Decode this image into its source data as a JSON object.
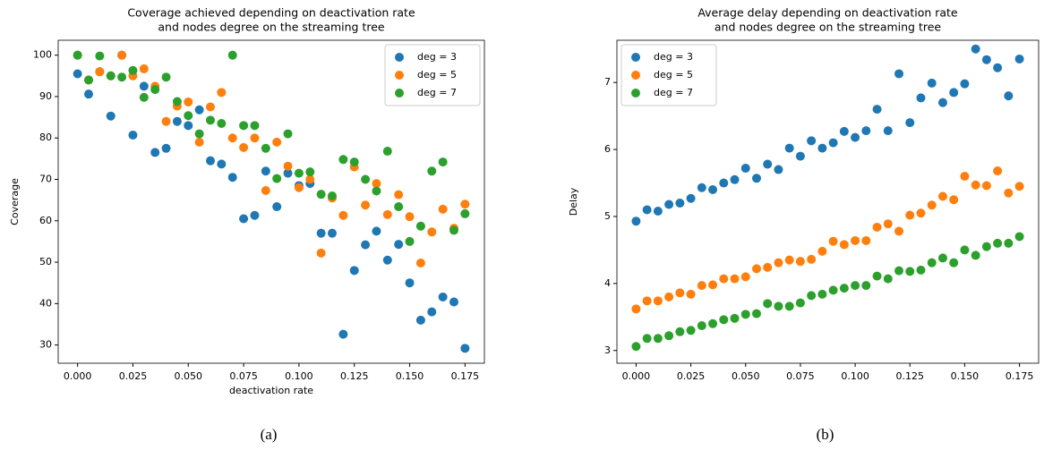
{
  "chart_data": [
    {
      "type": "scatter",
      "title": [
        "Coverage achieved depending on deactivation rate",
        "and nodes degree on the streaming tree"
      ],
      "xlabel": "deactivation rate",
      "ylabel": "Coverage",
      "caption": "(a)",
      "legend": "upper right",
      "x": [
        0,
        0.005,
        0.01,
        0.015,
        0.02,
        0.025,
        0.03,
        0.035,
        0.04,
        0.045,
        0.05,
        0.055,
        0.06,
        0.065,
        0.07,
        0.075,
        0.08,
        0.085,
        0.09,
        0.095,
        0.1,
        0.105,
        0.11,
        0.115,
        0.12,
        0.125,
        0.13,
        0.135,
        0.14,
        0.145,
        0.15,
        0.155,
        0.16,
        0.165,
        0.17,
        0.175
      ],
      "xlim": [
        -0.00875,
        0.18375
      ],
      "xticks": [
        {
          "value": 0,
          "label": "0.000"
        },
        {
          "value": 0.025,
          "label": "0.025"
        },
        {
          "value": 0.05,
          "label": "0.050"
        },
        {
          "value": 0.075,
          "label": "0.075"
        },
        {
          "value": 0.1,
          "label": "0.100"
        },
        {
          "value": 0.125,
          "label": "0.125"
        },
        {
          "value": 0.15,
          "label": "0.150"
        },
        {
          "value": 0.175,
          "label": "0.175"
        }
      ],
      "ylim": [
        25.6,
        103.6
      ],
      "yticks": [
        30,
        40,
        50,
        60,
        70,
        80,
        90,
        100
      ],
      "series": [
        {
          "name": "deg = 3",
          "color": "#1f77b4",
          "values": [
            95.5,
            90.6,
            96,
            85.3,
            100,
            80.7,
            92.5,
            76.5,
            77.5,
            84,
            83,
            86.8,
            74.5,
            73.7,
            70.5,
            60.5,
            61.3,
            72,
            63.4,
            71.5,
            68.5,
            69,
            57,
            57,
            32.6,
            48,
            54.2,
            57.5,
            50.5,
            54.3,
            45,
            36,
            38,
            41.6,
            40.4,
            29.2
          ]
        },
        {
          "name": "deg = 5",
          "color": "#ff7f0e",
          "values": [
            100,
            94,
            96,
            95,
            100,
            95,
            96.7,
            92.5,
            84,
            87.7,
            88.7,
            79,
            87.5,
            91,
            80,
            77.7,
            80,
            67.3,
            79,
            73.2,
            68,
            70,
            52.2,
            65.5,
            61.3,
            73,
            63.8,
            69,
            61.5,
            66.3,
            61,
            49.8,
            57.3,
            62.8,
            58.2,
            64
          ]
        },
        {
          "name": "deg = 7",
          "color": "#2ca02c",
          "values": [
            100,
            94,
            99.8,
            95,
            94.7,
            96.3,
            89.8,
            91.7,
            94.7,
            88.8,
            85.4,
            81,
            84.3,
            83.5,
            100,
            83,
            83,
            77.5,
            70.2,
            81,
            71.5,
            71.8,
            66.4,
            66,
            74.8,
            74.2,
            70,
            67.2,
            76.8,
            63.4,
            55,
            58.7,
            72,
            74.2,
            57.7,
            61.7
          ]
        }
      ]
    },
    {
      "type": "scatter",
      "title": [
        "Average delay depending on deactivation rate",
        "and nodes degree on the streaming tree"
      ],
      "ylabel": "Delay",
      "caption": "(b)",
      "legend": "upper left",
      "x": [
        0,
        0.005,
        0.01,
        0.015,
        0.02,
        0.025,
        0.03,
        0.035,
        0.04,
        0.045,
        0.05,
        0.055,
        0.06,
        0.065,
        0.07,
        0.075,
        0.08,
        0.085,
        0.09,
        0.095,
        0.1,
        0.105,
        0.11,
        0.115,
        0.12,
        0.125,
        0.13,
        0.135,
        0.14,
        0.145,
        0.15,
        0.155,
        0.16,
        0.165,
        0.17,
        0.175
      ],
      "xlim": [
        -0.00875,
        0.18375
      ],
      "xticks": [
        {
          "value": 0,
          "label": "0.000"
        },
        {
          "value": 0.025,
          "label": "0.025"
        },
        {
          "value": 0.05,
          "label": "0.050"
        },
        {
          "value": 0.075,
          "label": "0.075"
        },
        {
          "value": 0.1,
          "label": "0.100"
        },
        {
          "value": 0.125,
          "label": "0.125"
        },
        {
          "value": 0.15,
          "label": "0.150"
        },
        {
          "value": 0.175,
          "label": "0.175"
        }
      ],
      "ylim": [
        2.81,
        7.63
      ],
      "yticks": [
        3,
        4,
        5,
        6,
        7
      ],
      "series": [
        {
          "name": "deg = 3",
          "color": "#1f77b4",
          "values": [
            4.93,
            5.1,
            5.08,
            5.18,
            5.2,
            5.27,
            5.43,
            5.4,
            5.5,
            5.55,
            5.72,
            5.57,
            5.78,
            5.7,
            6.02,
            5.9,
            6.13,
            6.02,
            6.1,
            6.27,
            6.18,
            6.28,
            6.6,
            6.28,
            7.13,
            6.4,
            6.77,
            6.99,
            6.7,
            6.85,
            6.98,
            7.5,
            7.34,
            7.22,
            6.8,
            7.35
          ]
        },
        {
          "name": "deg = 5",
          "color": "#ff7f0e",
          "values": [
            3.62,
            3.74,
            3.74,
            3.8,
            3.86,
            3.84,
            3.97,
            3.98,
            4.07,
            4.07,
            4.1,
            4.22,
            4.24,
            4.31,
            4.35,
            4.33,
            4.36,
            4.48,
            4.63,
            4.58,
            4.64,
            4.64,
            4.84,
            4.89,
            4.78,
            5.02,
            5.05,
            5.17,
            5.3,
            5.25,
            5.6,
            5.47,
            5.46,
            5.68,
            5.35,
            5.45
          ]
        },
        {
          "name": "deg = 7",
          "color": "#2ca02c",
          "values": [
            3.06,
            3.18,
            3.18,
            3.22,
            3.28,
            3.3,
            3.37,
            3.4,
            3.46,
            3.48,
            3.54,
            3.55,
            3.7,
            3.66,
            3.66,
            3.71,
            3.82,
            3.84,
            3.9,
            3.93,
            3.97,
            3.97,
            4.11,
            4.07,
            4.19,
            4.18,
            4.2,
            4.31,
            4.38,
            4.31,
            4.5,
            4.42,
            4.55,
            4.6,
            4.6,
            4.7
          ]
        }
      ]
    }
  ]
}
